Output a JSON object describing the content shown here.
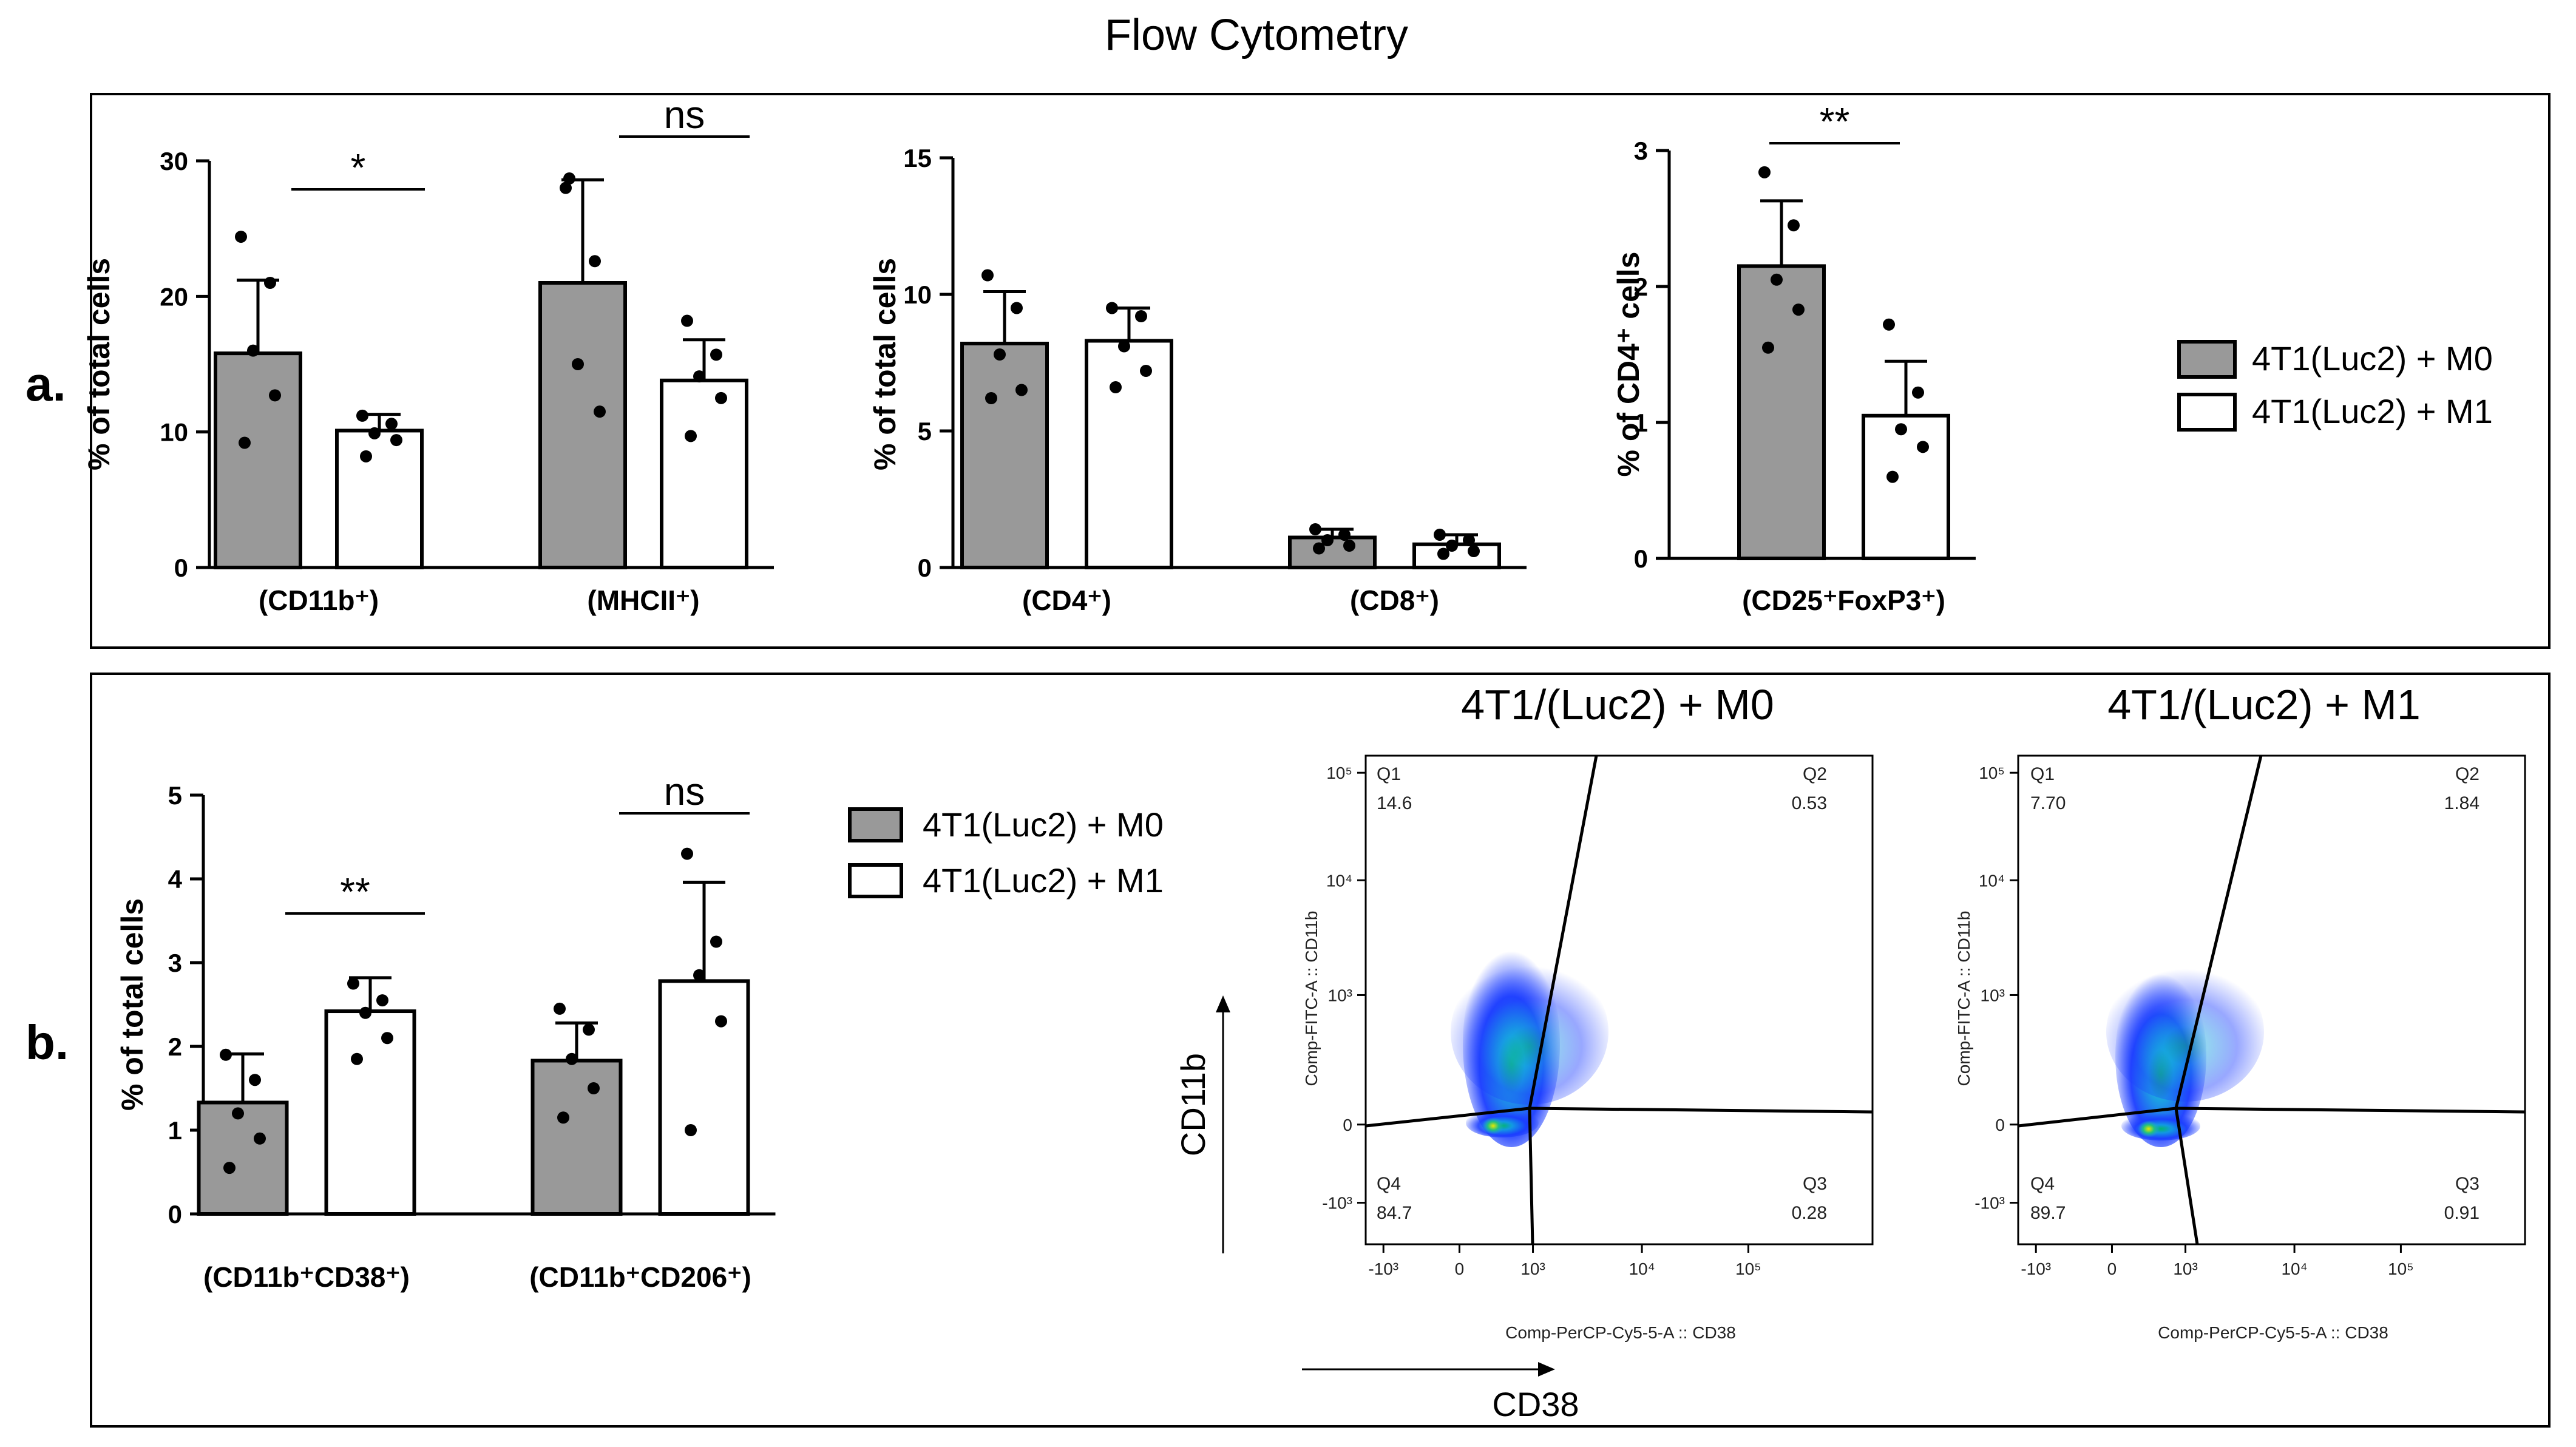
{
  "title": "Flow Cytometry",
  "panel_labels": {
    "a": "a.",
    "b": "b."
  },
  "colors": {
    "m0": "#999999",
    "m1": "#ffffff",
    "stroke": "#000000"
  },
  "legend": {
    "m0": "4T1(Luc2) + M0",
    "m1": "4T1(Luc2) + M1"
  },
  "flow": {
    "titles": {
      "m0": "4T1/(Luc2) + M0",
      "m1": "4T1/(Luc2) + M1"
    },
    "y_axis_label": "CD11b",
    "x_axis_label": "CD38",
    "y_channel": "Comp-FITC-A :: CD11b",
    "x_channel": "Comp-PerCP-Cy5-5-A :: CD38",
    "x_ticks": [
      "-10³",
      "0",
      "10³",
      "10⁴",
      "10⁵"
    ],
    "y_ticks": [
      "10⁵",
      "10⁴",
      "10³",
      "0",
      "-10³"
    ],
    "quadrants": {
      "m0": {
        "Q1": "14.6",
        "Q2": "0.53",
        "Q3": "0.28",
        "Q4": "84.7"
      },
      "m1": {
        "Q1": "7.70",
        "Q2": "1.84",
        "Q3": "0.91",
        "Q4": "89.7"
      }
    },
    "quadrant_names": {
      "q1": "Q1",
      "q2": "Q2",
      "q3": "Q3",
      "q4": "Q4"
    }
  },
  "chart_data": [
    {
      "type": "bar",
      "panel": "a",
      "ylabel": "% of total cells",
      "ylim": [
        0,
        30
      ],
      "yticks": [
        "0",
        "10",
        "20",
        "30"
      ],
      "categories": [
        "(CD11b⁺)",
        "(MHCII⁺)"
      ],
      "series": [
        {
          "name": "4T1(Luc2) + M0",
          "values": [
            15.8,
            21.0
          ],
          "errors": [
            5.4,
            7.6
          ],
          "points": [
            [
              24.4,
              21.0,
              16.0,
              12.7,
              9.2
            ],
            [
              28.0,
              22.6,
              15.0,
              11.5,
              28.7
            ]
          ]
        },
        {
          "name": "4T1(Luc2) + M1",
          "values": [
            10.1,
            13.8
          ],
          "errors": [
            1.2,
            3.0
          ],
          "points": [
            [
              11.2,
              10.6,
              9.9,
              9.4,
              8.2
            ],
            [
              18.2,
              15.7,
              14.1,
              12.5,
              9.7
            ]
          ]
        }
      ],
      "significance": [
        "*",
        "ns"
      ]
    },
    {
      "type": "bar",
      "panel": "a",
      "ylabel": "% of total cells",
      "ylim": [
        0,
        15
      ],
      "yticks": [
        "0",
        "5",
        "10",
        "15"
      ],
      "categories": [
        "(CD4⁺)",
        "(CD8⁺)"
      ],
      "series": [
        {
          "name": "4T1(Luc2) + M0",
          "values": [
            8.2,
            1.1
          ],
          "errors": [
            1.9,
            0.3
          ],
          "points": [
            [
              10.7,
              9.5,
              7.8,
              6.5,
              6.2
            ],
            [
              1.4,
              1.2,
              1.0,
              0.8,
              0.7
            ]
          ]
        },
        {
          "name": "4T1(Luc2) + M1",
          "values": [
            8.3,
            0.85
          ],
          "errors": [
            1.2,
            0.35
          ],
          "points": [
            [
              9.5,
              9.2,
              8.1,
              7.2,
              6.6
            ],
            [
              1.2,
              1.0,
              0.8,
              0.6,
              0.5
            ]
          ]
        }
      ],
      "significance": [
        "",
        ""
      ]
    },
    {
      "type": "bar",
      "panel": "a",
      "ylabel": "% of CD4⁺ cells",
      "ylim": [
        0,
        3
      ],
      "yticks": [
        "0",
        "1",
        "2",
        "3"
      ],
      "categories": [
        "(CD25⁺FoxP3⁺)"
      ],
      "series": [
        {
          "name": "4T1(Luc2) + M0",
          "values": [
            2.15
          ],
          "errors": [
            0.48
          ],
          "points": [
            [
              2.84,
              2.45,
              2.05,
              1.83,
              1.55
            ]
          ]
        },
        {
          "name": "4T1(Luc2) + M1",
          "values": [
            1.05
          ],
          "errors": [
            0.4
          ],
          "points": [
            [
              1.72,
              1.22,
              0.95,
              0.82,
              0.6
            ]
          ]
        }
      ],
      "significance": [
        "**"
      ]
    },
    {
      "type": "bar",
      "panel": "b",
      "ylabel": "% of total cells",
      "ylim": [
        0,
        5
      ],
      "yticks": [
        "0",
        "1",
        "2",
        "3",
        "4",
        "5"
      ],
      "categories": [
        "(CD11b⁺CD38⁺)",
        "(CD11b⁺CD206⁺)"
      ],
      "series": [
        {
          "name": "4T1(Luc2) + M0",
          "values": [
            1.33,
            1.83
          ],
          "errors": [
            0.58,
            0.45
          ],
          "points": [
            [
              1.9,
              1.6,
              1.2,
              0.9,
              0.55
            ],
            [
              2.45,
              2.2,
              1.85,
              1.5,
              1.15
            ]
          ]
        },
        {
          "name": "4T1(Luc2) + M1",
          "values": [
            2.42,
            2.78
          ],
          "errors": [
            0.4,
            1.18
          ],
          "points": [
            [
              2.75,
              2.55,
              2.4,
              2.1,
              1.85
            ],
            [
              4.3,
              3.25,
              2.85,
              2.3,
              1.0
            ]
          ]
        }
      ],
      "significance": [
        "**",
        "ns"
      ]
    }
  ]
}
